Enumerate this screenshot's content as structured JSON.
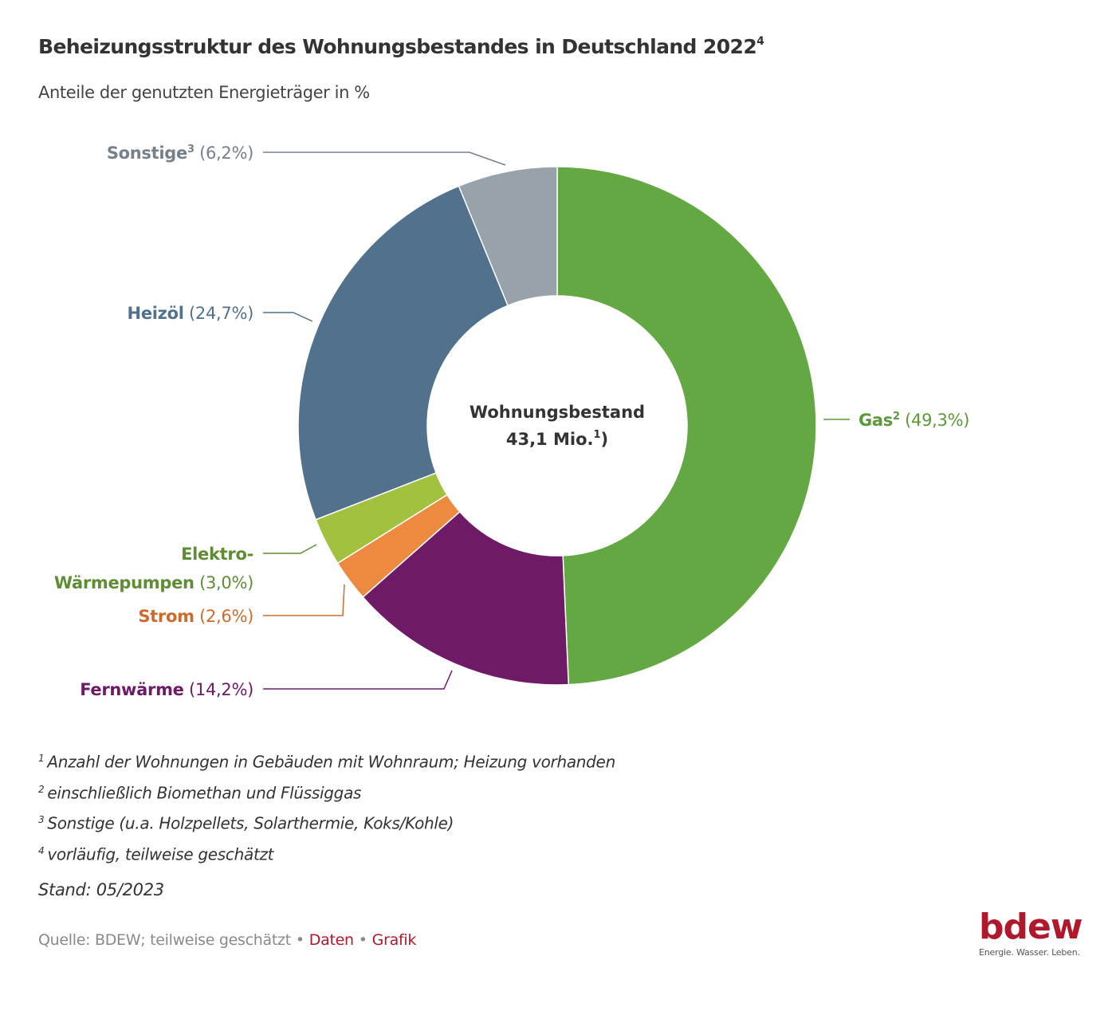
{
  "header": {
    "title": "Beheizungsstruktur des Wohnungsbestandes in Deutschland 2022",
    "title_footnote": "4",
    "subtitle": "Anteile der genutzten Energieträger in %"
  },
  "chart_data": {
    "type": "pie",
    "variant": "donut",
    "title": "Beheizungsstruktur des Wohnungsbestandes in Deutschland 2022",
    "subtitle": "Anteile der genutzten Energieträger in %",
    "unit": "%",
    "center_label": {
      "line1": "Wohnungsbestand",
      "line2": "43,1 Mio.",
      "line2_footnote": "1",
      "line2_suffix": ")"
    },
    "start_angle": "12 o'clock",
    "direction": "clockwise",
    "slices": [
      {
        "name": "Gas",
        "footnote": "2",
        "value": 49.3,
        "label_value": "(49,3%)",
        "color": "#64a843",
        "text_color": "#5a9a38",
        "label_side": "right"
      },
      {
        "name": "Fernwärme",
        "footnote": "",
        "value": 14.2,
        "label_value": "(14,2%)",
        "color": "#6e1a67",
        "text_color": "#6e1a67",
        "label_side": "left"
      },
      {
        "name": "Strom",
        "footnote": "",
        "value": 2.6,
        "label_value": "(2,6%)",
        "color": "#ee8a40",
        "text_color": "#cd6b2c",
        "label_side": "left"
      },
      {
        "name": "Elektro-Wärmepumpen",
        "name_line1": "Elektro-",
        "name_line2": "Wärmepumpen",
        "footnote": "",
        "value": 3.0,
        "label_value": "(3,0%)",
        "color": "#a2c13e",
        "text_color": "#5f8d33",
        "label_side": "left"
      },
      {
        "name": "Heizöl",
        "footnote": "",
        "value": 24.7,
        "label_value": "(24,7%)",
        "color": "#51718c",
        "text_color": "#51718c",
        "label_side": "left"
      },
      {
        "name": "Sonstige",
        "footnote": "3",
        "value": 6.2,
        "label_value": "(6,2%)",
        "color": "#98a2ab",
        "text_color": "#75808a",
        "label_side": "left"
      }
    ]
  },
  "footnotes": [
    {
      "mark": "1",
      "text": "Anzahl der Wohnungen in Gebäuden mit Wohnraum; Heizung vorhanden"
    },
    {
      "mark": "2",
      "text": "einschließlich Biomethan und Flüssiggas"
    },
    {
      "mark": "3",
      "text": "Sonstige (u.a. Holzpellets, Solarthermie, Koks/Kohle)"
    },
    {
      "mark": "4",
      "text": "vorläufig, teilweise geschätzt"
    }
  ],
  "stand": "Stand: 05/2023",
  "source": {
    "text": "Quelle: BDEW; teilweise geschätzt",
    "separator": "•",
    "links": [
      "Daten",
      "Grafik"
    ]
  },
  "logo": {
    "wordmark": "bdew",
    "tagline": "Energie. Wasser. Leben."
  },
  "colors": {
    "brand": "#b0182c",
    "text": "#333333",
    "muted": "#8a8a8a"
  }
}
